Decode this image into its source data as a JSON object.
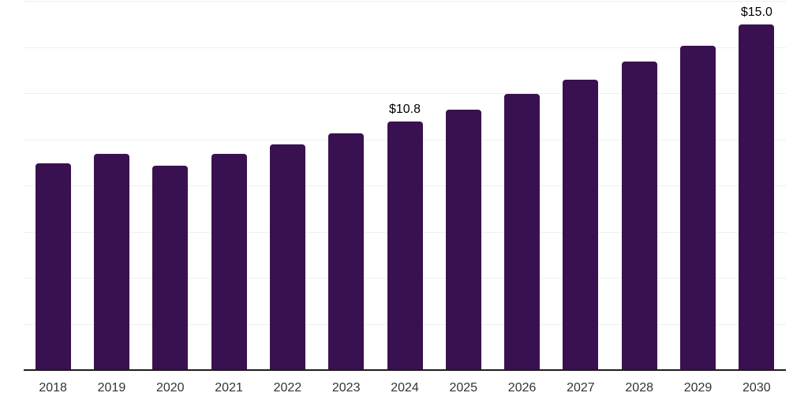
{
  "chart_data": {
    "type": "bar",
    "title": "",
    "xlabel": "",
    "ylabel": "",
    "categories": [
      "2018",
      "2019",
      "2020",
      "2021",
      "2022",
      "2023",
      "2024",
      "2025",
      "2026",
      "2027",
      "2028",
      "2029",
      "2030"
    ],
    "values": [
      9.0,
      9.4,
      8.9,
      9.4,
      9.8,
      10.3,
      10.8,
      11.3,
      12.0,
      12.6,
      13.4,
      14.1,
      15.0
    ],
    "bar_labels": [
      "",
      "",
      "",
      "",
      "",
      "",
      "$10.8",
      "",
      "",
      "",
      "",
      "",
      "$15.0"
    ],
    "ylim": [
      0,
      16
    ],
    "grid": true,
    "grid_step": 2,
    "legend": "none",
    "colors": {
      "bar": "#3A1150",
      "axis_line": "#1C1C1C",
      "gridline": "#EFEFEF",
      "bar_label_text": "#000000",
      "tick_label_text": "#333333",
      "background": "#FFFFFF"
    }
  }
}
